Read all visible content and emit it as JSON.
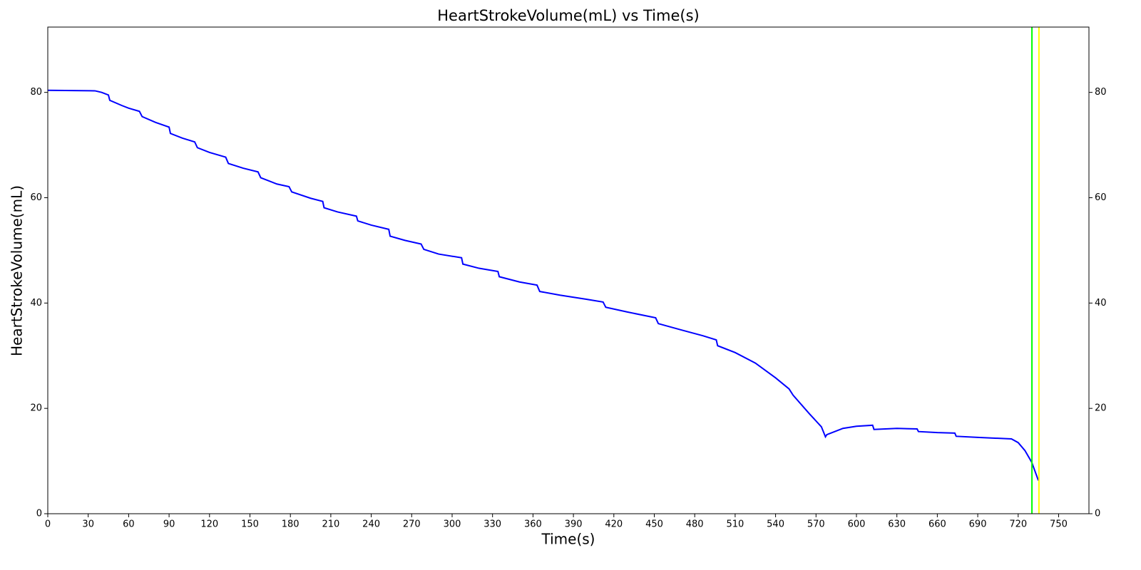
{
  "chart_data": {
    "type": "line",
    "title": "HeartStrokeVolume(mL) vs Time(s)",
    "xlabel": "Time(s)",
    "ylabel": "HeartStrokeVolume(mL)",
    "xlim": [
      0,
      772.5
    ],
    "ylim": [
      0,
      92.4
    ],
    "y2lim": [
      0,
      92.4
    ],
    "xticks": [
      0,
      30,
      60,
      90,
      120,
      150,
      180,
      210,
      240,
      270,
      300,
      330,
      360,
      390,
      420,
      450,
      480,
      510,
      540,
      570,
      600,
      630,
      660,
      690,
      720,
      750
    ],
    "yticks": [
      0,
      20,
      40,
      60,
      80
    ],
    "y2ticks": [
      0,
      20,
      40,
      60,
      80
    ],
    "series": [
      {
        "name": "HeartStrokeVolume",
        "color": "#0000ff",
        "x": [
          0,
          35,
          40,
          45,
          46,
          55,
          60,
          68,
          70,
          80,
          90,
          91,
          100,
          109,
          111,
          120,
          132,
          134,
          145,
          156,
          158,
          170,
          179,
          181,
          195,
          204,
          205,
          215,
          229,
          230,
          240,
          253,
          254,
          265,
          277,
          279,
          290,
          307,
          308,
          320,
          334,
          335,
          350,
          363,
          365,
          380,
          400,
          412,
          414,
          430,
          451,
          453,
          470,
          486,
          496,
          497,
          510,
          525,
          540,
          550,
          553,
          565,
          574,
          577,
          578,
          590,
          600,
          612,
          613,
          630,
          645,
          646,
          660,
          673,
          674,
          690,
          715,
          720,
          725,
          730,
          735
        ],
        "values": [
          80.4,
          80.3,
          80.0,
          79.5,
          78.5,
          77.5,
          77.0,
          76.4,
          75.4,
          74.3,
          73.4,
          72.2,
          71.3,
          70.6,
          69.5,
          68.6,
          67.7,
          66.5,
          65.6,
          64.9,
          63.8,
          62.6,
          62.1,
          61.1,
          59.9,
          59.3,
          58.1,
          57.3,
          56.5,
          55.6,
          54.8,
          54.0,
          52.7,
          51.9,
          51.2,
          50.2,
          49.3,
          48.6,
          47.4,
          46.6,
          46.0,
          45.0,
          44.0,
          43.4,
          42.2,
          41.5,
          40.7,
          40.2,
          39.2,
          38.3,
          37.2,
          36.1,
          34.9,
          33.8,
          33.0,
          31.9,
          30.6,
          28.6,
          25.8,
          23.7,
          22.5,
          19.0,
          16.5,
          14.6,
          15.0,
          16.2,
          16.6,
          16.8,
          16.0,
          16.2,
          16.1,
          15.6,
          15.4,
          15.3,
          14.7,
          14.5,
          14.2,
          13.5,
          12.0,
          9.8,
          6.3
        ]
      }
    ],
    "vlines": [
      {
        "x": 730.2,
        "color": "#00ff00"
      },
      {
        "x": 735.4,
        "color": "#ffff00"
      }
    ]
  }
}
